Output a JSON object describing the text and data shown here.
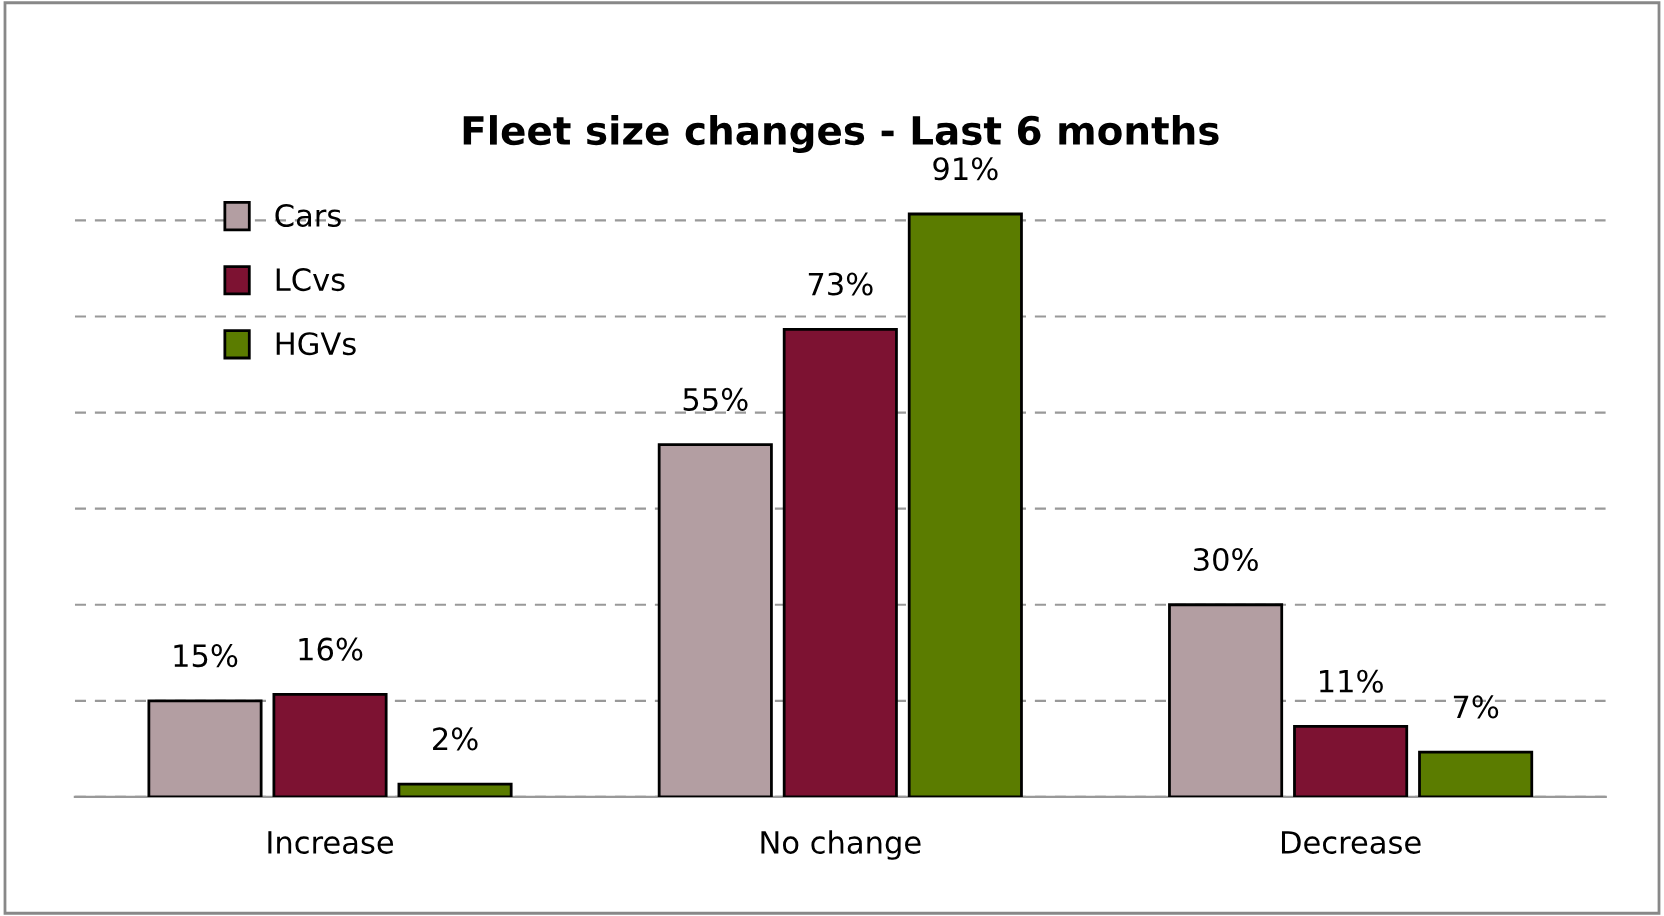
{
  "chart_data": {
    "type": "bar",
    "title": "Fleet size changes - Last 6 months",
    "categories": [
      "Increase",
      "No change",
      "Decrease"
    ],
    "series": [
      {
        "name": "Cars",
        "color": "#b39ea2",
        "values": [
          15,
          55,
          30
        ],
        "value_labels": [
          "15%",
          "55%",
          "30%"
        ]
      },
      {
        "name": "LCvs",
        "color": "#7d1232",
        "values": [
          16,
          73,
          11
        ],
        "value_labels": [
          "16%",
          "73%",
          "11%"
        ]
      },
      {
        "name": "HGVs",
        "color": "#5b7c00",
        "values": [
          2,
          91,
          7
        ],
        "value_labels": [
          "2%",
          "91%",
          "7%"
        ]
      }
    ],
    "tick_labels": "x",
    "grid": "y",
    "legend": "top left"
  }
}
